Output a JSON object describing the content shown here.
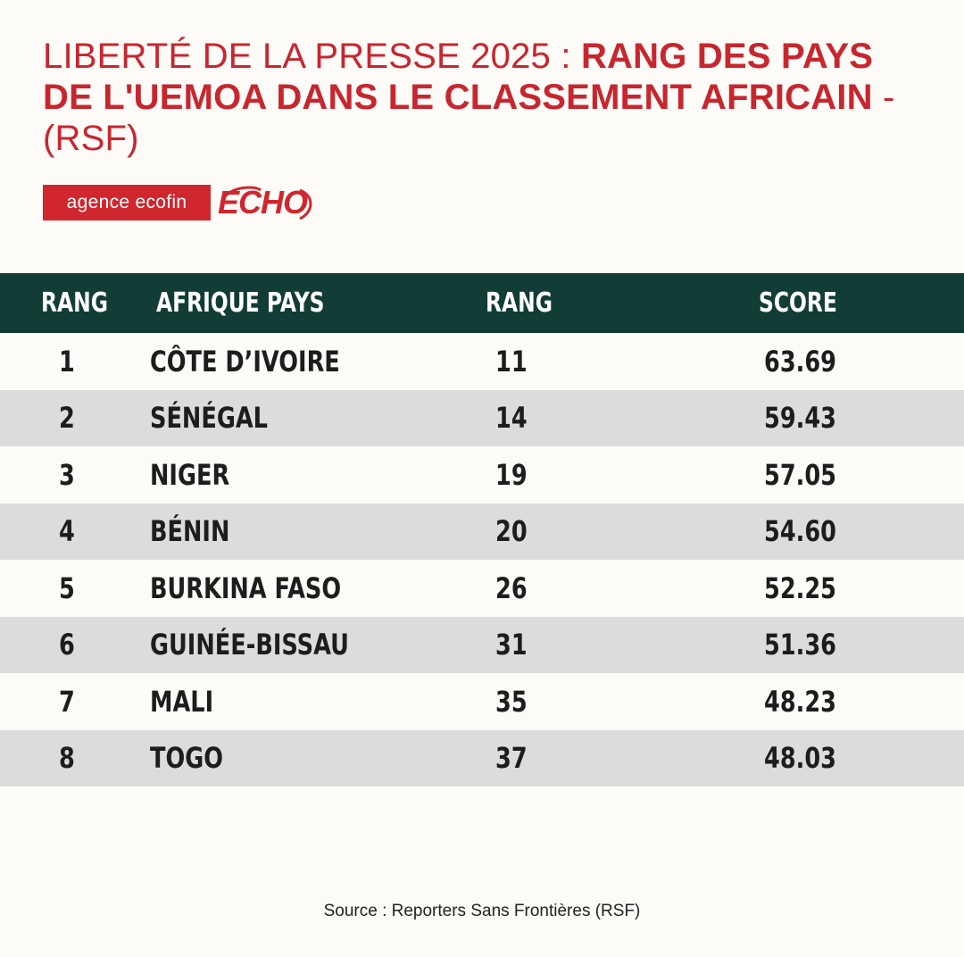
{
  "header": {
    "title_regular": "LIBERTÉ DE LA PRESSE 2025 : ",
    "title_bold": "RANG DES PAYS DE L'UEMOA DANS LE CLASSEMENT AFRICAIN",
    "title_tail": " - (RSF)"
  },
  "logos": {
    "ecofin": "agence ecofin",
    "echo": "ECHO"
  },
  "colors": {
    "title_red": "#c8262f",
    "header_green": "#123d36",
    "row_shade": "#dcdcdc",
    "background": "#fcfbf7"
  },
  "chart_data": {
    "type": "table",
    "columns": [
      "RANG",
      "AFRIQUE PAYS",
      "RANG",
      "SCORE"
    ],
    "rows": [
      [
        "1",
        "CÔTE D’IVOIRE",
        "11",
        "63.69"
      ],
      [
        "2",
        "SÉNÉGAL",
        "14",
        "59.43"
      ],
      [
        "3",
        "NIGER",
        "19",
        "57.05"
      ],
      [
        "4",
        "BÉNIN",
        "20",
        "54.60"
      ],
      [
        "5",
        "BURKINA FASO",
        "26",
        "52.25"
      ],
      [
        "6",
        "GUINÉE-BISSAU",
        "31",
        "51.36"
      ],
      [
        "7",
        "MALI",
        "35",
        "48.23"
      ],
      [
        "8",
        "TOGO",
        "37",
        "48.03"
      ]
    ]
  },
  "footer": {
    "source": "Source : Reporters Sans Frontières (RSF)"
  }
}
